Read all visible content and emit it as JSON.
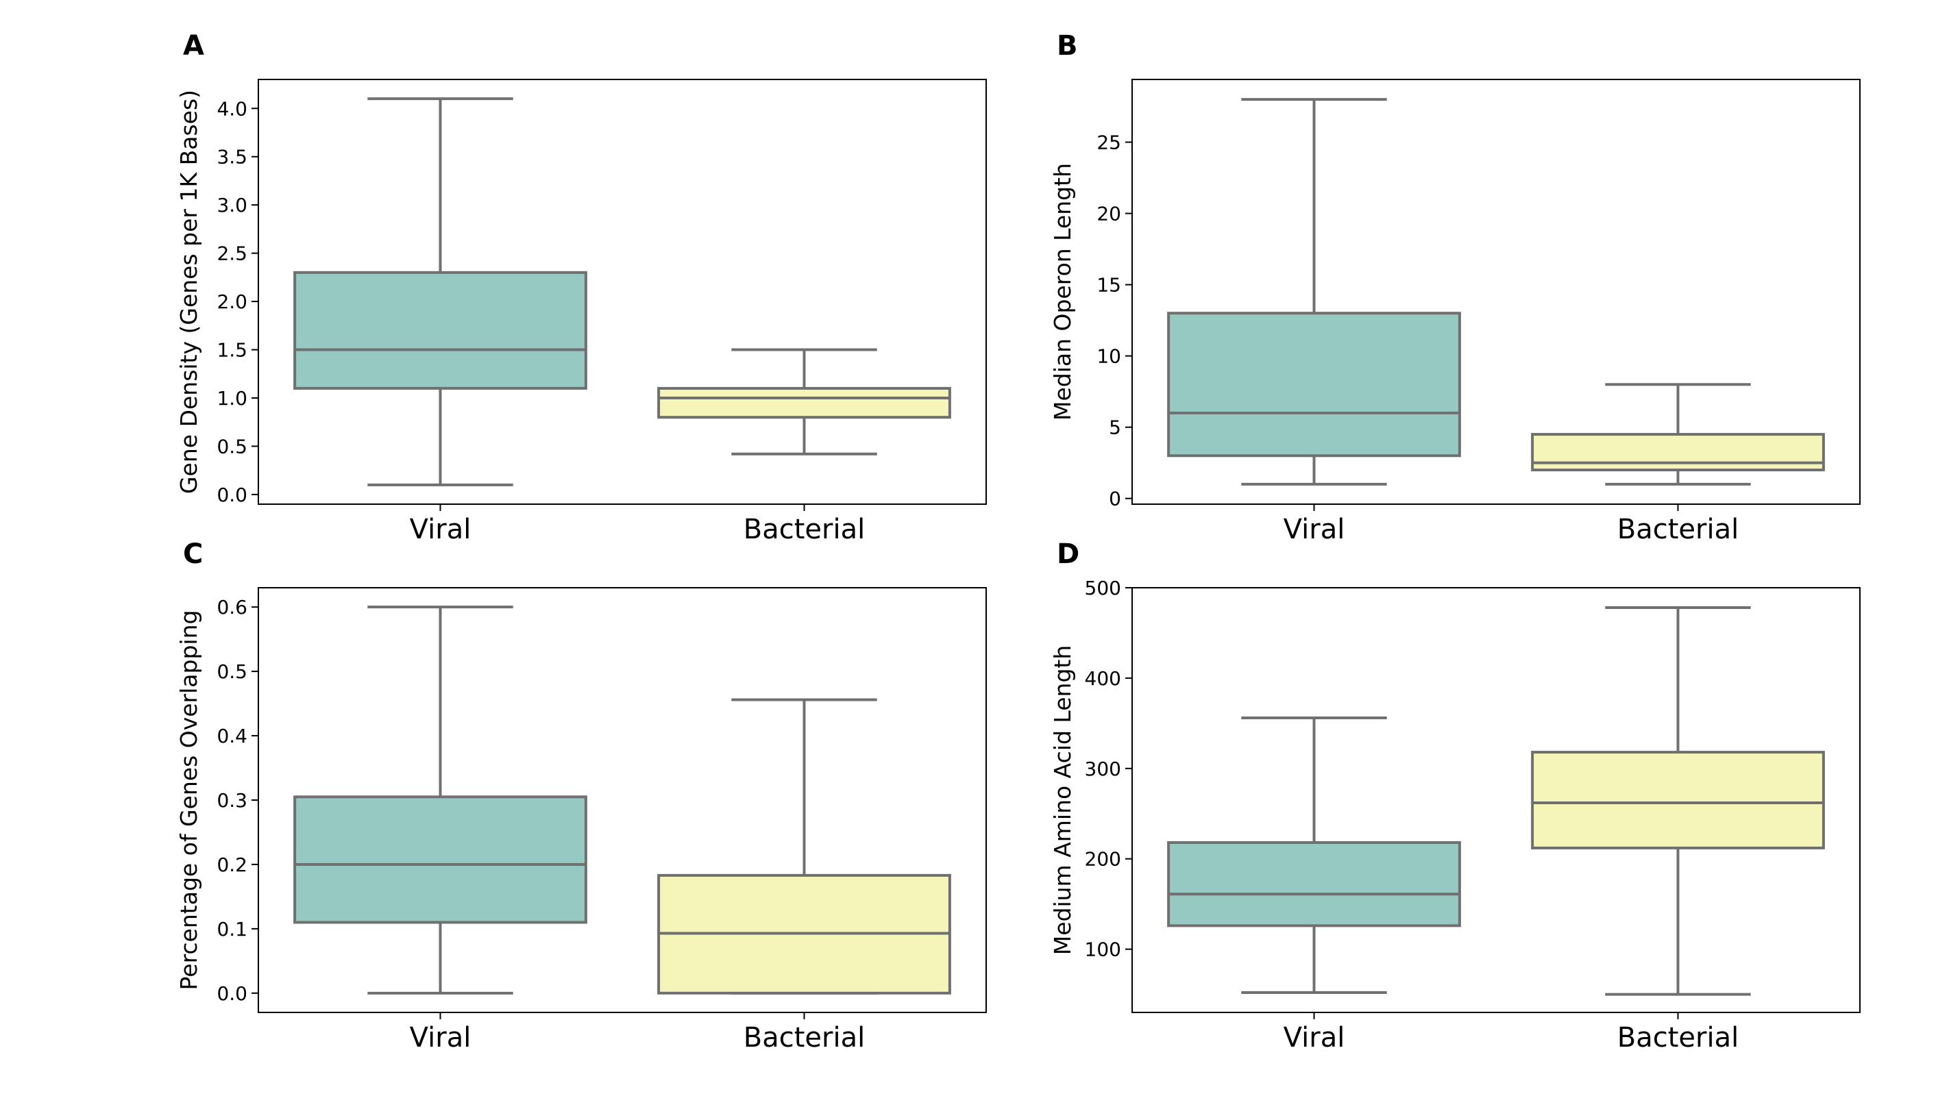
{
  "chart_data": [
    {
      "type": "box",
      "panel": "A",
      "ylabel": "Gene Density (Genes per 1K Bases)",
      "xlabel": "",
      "categories": [
        "Viral",
        "Bacterial"
      ],
      "ylim": [
        -0.1,
        4.3
      ],
      "yticks": [
        0.0,
        0.5,
        1.0,
        1.5,
        2.0,
        2.5,
        3.0,
        3.5,
        4.0
      ],
      "ytick_labels": [
        "0.0",
        "0.5",
        "1.0",
        "1.5",
        "2.0",
        "2.5",
        "3.0",
        "3.5",
        "4.0"
      ],
      "boxes": [
        {
          "category": "Viral",
          "whisker_low": 0.1,
          "q1": 1.1,
          "median": 1.5,
          "q3": 2.3,
          "whisker_high": 4.1,
          "color": "#96c9c1"
        },
        {
          "category": "Bacterial",
          "whisker_low": 0.42,
          "q1": 0.8,
          "median": 1.0,
          "q3": 1.1,
          "whisker_high": 1.5,
          "color": "#f5f5b9"
        }
      ]
    },
    {
      "type": "box",
      "panel": "B",
      "ylabel": "Median Operon Length",
      "xlabel": "",
      "categories": [
        "Viral",
        "Bacterial"
      ],
      "ylim": [
        -0.4,
        29.4
      ],
      "yticks": [
        0,
        5,
        10,
        15,
        20,
        25
      ],
      "ytick_labels": [
        "0",
        "5",
        "10",
        "15",
        "20",
        "25"
      ],
      "boxes": [
        {
          "category": "Viral",
          "whisker_low": 1,
          "q1": 3,
          "median": 6,
          "q3": 13,
          "whisker_high": 28,
          "color": "#96c9c1"
        },
        {
          "category": "Bacterial",
          "whisker_low": 1,
          "q1": 2,
          "median": 2.5,
          "q3": 4.5,
          "whisker_high": 8,
          "color": "#f5f5b9"
        }
      ]
    },
    {
      "type": "box",
      "panel": "C",
      "ylabel": "Percentage of Genes Overlapping",
      "xlabel": "",
      "categories": [
        "Viral",
        "Bacterial"
      ],
      "ylim": [
        -0.03,
        0.63
      ],
      "yticks": [
        0.0,
        0.1,
        0.2,
        0.3,
        0.4,
        0.5,
        0.6
      ],
      "ytick_labels": [
        "0.0",
        "0.1",
        "0.2",
        "0.3",
        "0.4",
        "0.5",
        "0.6"
      ],
      "boxes": [
        {
          "category": "Viral",
          "whisker_low": 0.0,
          "q1": 0.11,
          "median": 0.2,
          "q3": 0.305,
          "whisker_high": 0.6,
          "color": "#96c9c1"
        },
        {
          "category": "Bacterial",
          "whisker_low": 0.0,
          "q1": 0.0,
          "median": 0.093,
          "q3": 0.183,
          "whisker_high": 0.456,
          "color": "#f5f5b9"
        }
      ]
    },
    {
      "type": "box",
      "panel": "D",
      "ylabel": "Medium Amino Acid Length",
      "xlabel": "",
      "categories": [
        "Viral",
        "Bacterial"
      ],
      "ylim": [
        30,
        500
      ],
      "yticks": [
        100,
        200,
        300,
        400,
        500
      ],
      "ytick_labels": [
        "100",
        "200",
        "300",
        "400",
        "500"
      ],
      "boxes": [
        {
          "category": "Viral",
          "whisker_low": 52,
          "q1": 126,
          "median": 161,
          "q3": 218,
          "whisker_high": 356,
          "color": "#96c9c1"
        },
        {
          "category": "Bacterial",
          "whisker_low": 50,
          "q1": 212,
          "median": 262,
          "q3": 318,
          "whisker_high": 478,
          "color": "#f5f5b9"
        }
      ]
    }
  ]
}
